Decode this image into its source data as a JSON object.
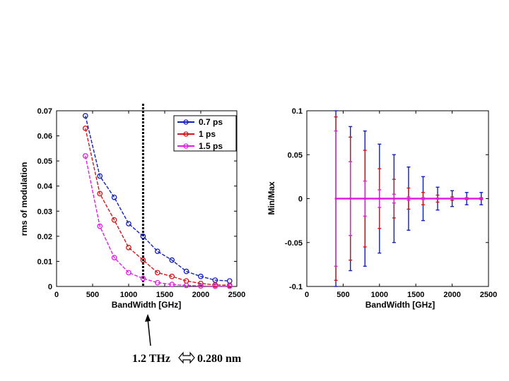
{
  "colors": {
    "s07": "#1020c0",
    "s1": "#d01818",
    "s15": "#e020e0"
  },
  "annotation": {
    "left": "1.2 THz",
    "right": "0.280 nm"
  },
  "chart_data": [
    {
      "type": "line",
      "xlabel": "BandWidth [GHz]",
      "ylabel": "rms of modulation",
      "xlim": [
        0,
        2500
      ],
      "ylim": [
        0,
        0.07
      ],
      "xticks": [
        "0",
        "500",
        "1000",
        "1500",
        "2000",
        "2500"
      ],
      "yticks": [
        "0",
        "0.01",
        "0.02",
        "0.03",
        "0.04",
        "0.05",
        "0.06",
        "0.07"
      ],
      "vline_x": 1200,
      "legend_position": "top-right",
      "x": [
        400,
        600,
        800,
        1000,
        1200,
        1400,
        1600,
        1800,
        2000,
        2200,
        2400
      ],
      "series": [
        {
          "name": "0.7 ps",
          "values": [
            0.068,
            0.044,
            0.0355,
            0.025,
            0.02,
            0.014,
            0.0105,
            0.006,
            0.004,
            0.0025,
            0.0022
          ]
        },
        {
          "name": "1 ps",
          "values": [
            0.063,
            0.037,
            0.0265,
            0.0155,
            0.0105,
            0.0055,
            0.004,
            0.0022,
            0.0012,
            0.0006,
            0.0005
          ]
        },
        {
          "name": "1.5 ps",
          "values": [
            0.052,
            0.024,
            0.0115,
            0.0055,
            0.0032,
            0.0015,
            0.0008,
            0.0004,
            0.0002,
            0.0001,
            0.0001
          ]
        }
      ]
    },
    {
      "type": "errorbar",
      "xlabel": "BandWidth [GHz]",
      "ylabel": "Min/Max",
      "xlim": [
        0,
        2500
      ],
      "ylim": [
        -0.1,
        0.1
      ],
      "xticks": [
        "0",
        "500",
        "1000",
        "1500",
        "2000",
        "2500"
      ],
      "yticks": [
        "-0.1",
        "-0.05",
        "0",
        "0.05",
        "0.1"
      ],
      "x": [
        400,
        600,
        800,
        1000,
        1200,
        1400,
        1600,
        1800,
        2000,
        2200,
        2400
      ],
      "series": [
        {
          "name": "0.7 ps",
          "values": [
            0.1,
            0.082,
            0.077,
            0.062,
            0.05,
            0.036,
            0.025,
            0.013,
            0.009,
            0.007,
            0.007
          ]
        },
        {
          "name": "1 ps",
          "values": [
            0.093,
            0.07,
            0.055,
            0.034,
            0.022,
            0.012,
            0.007,
            0.004,
            0.002,
            0.001,
            0.001
          ]
        },
        {
          "name": "1.5 ps",
          "values": [
            0.077,
            0.042,
            0.02,
            0.01,
            0.005,
            0.002,
            0.001,
            0.0005,
            0.0003,
            0.0002,
            0.0001
          ]
        }
      ]
    }
  ]
}
